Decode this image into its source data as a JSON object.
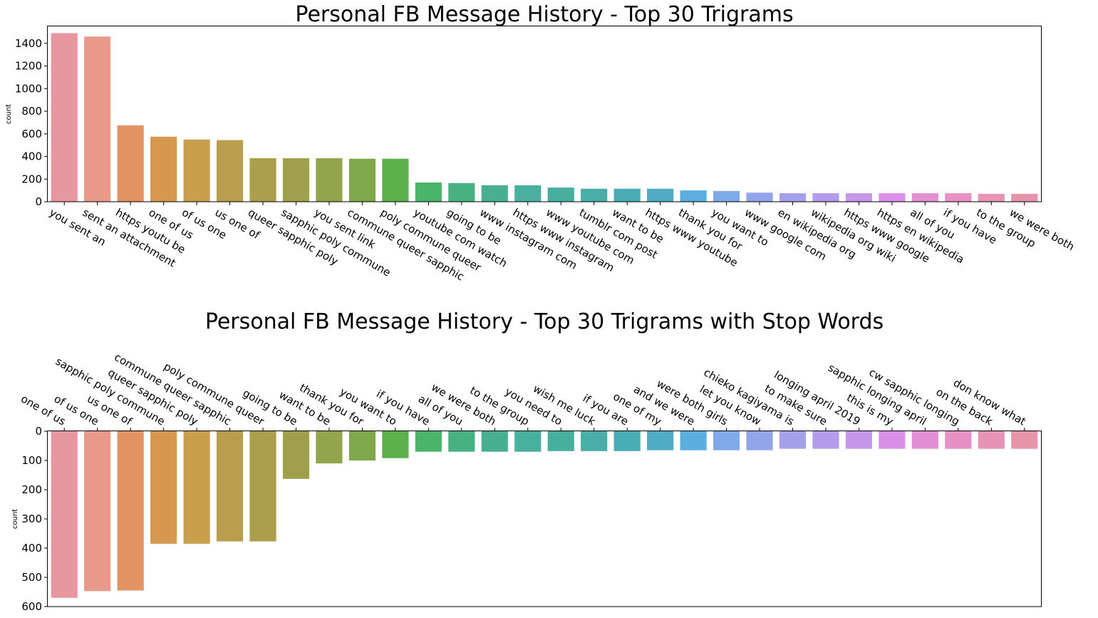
{
  "chart_data": [
    {
      "type": "bar",
      "title": "Personal FB Message History - Top 30 Trigrams",
      "xlabel": "",
      "ylabel": "count",
      "ylim": [
        0,
        1550
      ],
      "yticks": [
        0,
        200,
        400,
        600,
        800,
        1000,
        1200,
        1400
      ],
      "y_inverted": false,
      "categories": [
        "you sent an",
        "sent an attachment",
        "https youtu be",
        "one of us",
        "of us one",
        "us one of",
        "queer sapphic poly",
        "sapphic poly commune",
        "you sent link",
        "commune queer sapphic",
        "poly commune queer",
        "youtube com watch",
        "going to be",
        "www instagram com",
        "https www instagram",
        "www youtube com",
        "tumblr com post",
        "want to be",
        "https www youtube",
        "thank you for",
        "you want to",
        "www google com",
        "en wikipedia org",
        "wikipedia org wiki",
        "https www google",
        "https en wikipedia",
        "all of you",
        "if you have",
        "to the group",
        "we were both"
      ],
      "values": [
        1490,
        1460,
        675,
        575,
        550,
        545,
        385,
        385,
        385,
        380,
        380,
        170,
        165,
        145,
        145,
        125,
        115,
        115,
        115,
        100,
        95,
        80,
        75,
        75,
        75,
        75,
        75,
        75,
        70,
        70
      ],
      "colors": [
        "#e8969f",
        "#e8998a",
        "#e39262",
        "#d6974e",
        "#c99e4c",
        "#b99f4d",
        "#ab9f4b",
        "#a0a04c",
        "#92a44c",
        "#7fa84c",
        "#5eb04a",
        "#49b46a",
        "#47b182",
        "#48b090",
        "#48b09c",
        "#48ae9f",
        "#49adaa",
        "#4aadb6",
        "#50acc4",
        "#5daee0",
        "#7ea9ea",
        "#92a4ea",
        "#a5a0ea",
        "#b49cea",
        "#c596ea",
        "#da90e8",
        "#e38fd4",
        "#e690c5",
        "#e693b6",
        "#e594aa"
      ]
    },
    {
      "type": "bar",
      "title": "Personal FB Message History - Top 30 Trigrams with Stop Words",
      "xlabel": "",
      "ylabel": "count",
      "ylim": [
        0,
        600
      ],
      "yticks": [
        0,
        100,
        200,
        300,
        400,
        500,
        600
      ],
      "y_inverted": true,
      "categories": [
        "one of us",
        "of us one",
        "us one of",
        "sapphic poly commune",
        "queer sapphic poly",
        "commune queer sapphic",
        "poly commune queer",
        "going to be",
        "want to be",
        "thank you for",
        "you want to",
        "if you have",
        "all of you",
        "we were both",
        "to the group",
        "you need to",
        "wish me luck",
        "if you are",
        "one of my",
        "and we were",
        "were both girls",
        "let you know",
        "chieko kagiyama is",
        "to make sure",
        "longing april 2019",
        "this is my",
        "sapphic longing april",
        "cw sapphic longing",
        "on the back",
        "don know what"
      ],
      "values": [
        570,
        547,
        545,
        385,
        385,
        377,
        377,
        163,
        110,
        100,
        92,
        70,
        70,
        70,
        70,
        68,
        68,
        68,
        65,
        65,
        65,
        65,
        60,
        60,
        60,
        60,
        60,
        60,
        60,
        60
      ],
      "colors": [
        "#e8969f",
        "#e8998a",
        "#e39262",
        "#d6974e",
        "#c99e4c",
        "#b99f4d",
        "#ab9f4b",
        "#a0a04c",
        "#92a44c",
        "#7fa84c",
        "#5eb04a",
        "#49b46a",
        "#47b182",
        "#48b090",
        "#48b09c",
        "#48ae9f",
        "#49adaa",
        "#4aadb6",
        "#50acc4",
        "#5daee0",
        "#7ea9ea",
        "#92a4ea",
        "#a5a0ea",
        "#b49cea",
        "#c596ea",
        "#da90e8",
        "#e38fd4",
        "#e690c5",
        "#e693b6",
        "#e594aa"
      ]
    }
  ]
}
